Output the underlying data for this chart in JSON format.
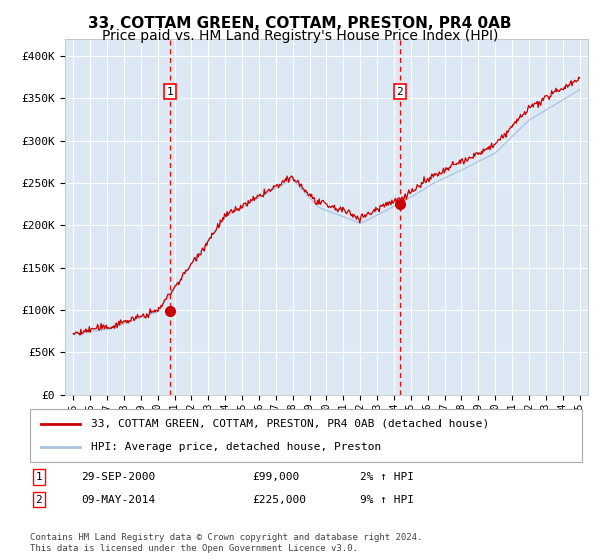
{
  "title": "33, COTTAM GREEN, COTTAM, PRESTON, PR4 0AB",
  "subtitle": "Price paid vs. HM Land Registry's House Price Index (HPI)",
  "title_fontsize": 11,
  "subtitle_fontsize": 10,
  "background_color": "#ffffff",
  "plot_bg_color": "#dce9f5",
  "grid_color": "#ffffff",
  "hpi_line_color": "#a8c4e0",
  "price_line_color": "#cc0000",
  "marker_color": "#cc0000",
  "ylim": [
    0,
    420000
  ],
  "yticks": [
    0,
    50000,
    100000,
    150000,
    200000,
    250000,
    300000,
    350000,
    400000
  ],
  "x_start_year": 1995,
  "x_end_year": 2025,
  "event1_year": 2000.75,
  "event1_price": 99000,
  "event1_label": "1",
  "event1_date": "29-SEP-2000",
  "event1_pct": "2% ↑ HPI",
  "event2_year": 2014.35,
  "event2_price": 225000,
  "event2_label": "2",
  "event2_date": "09-MAY-2014",
  "event2_pct": "9% ↑ HPI",
  "legend_line1": "33, COTTAM GREEN, COTTAM, PRESTON, PR4 0AB (detached house)",
  "legend_line2": "HPI: Average price, detached house, Preston",
  "footnote": "Contains HM Land Registry data © Crown copyright and database right 2024.\nThis data is licensed under the Open Government Licence v3.0."
}
